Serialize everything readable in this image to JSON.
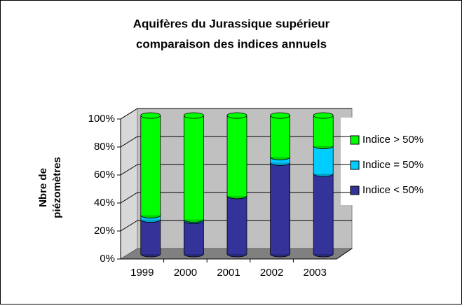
{
  "chart_data": {
    "type": "stacked-cylinder",
    "title": [
      "Aquifères du Jurassique supérieur",
      "comparaison des indices annuels"
    ],
    "ylabel": [
      "Nbre de",
      "piézomètres"
    ],
    "categories": [
      "1999",
      "2000",
      "2001",
      "2002",
      "2003"
    ],
    "series": [
      {
        "name": "Indice < 50%",
        "color": "#333399",
        "values": [
          25,
          24,
          42,
          66,
          58
        ]
      },
      {
        "name": "Indice = 50%",
        "color": "#00ccff",
        "values": [
          3,
          1,
          0,
          4,
          20
        ]
      },
      {
        "name": "Indice > 50%",
        "color": "#00ff00",
        "values": [
          72,
          75,
          58,
          30,
          22
        ]
      }
    ],
    "ylim": [
      0,
      100
    ],
    "yticks": [
      {
        "value": 0,
        "label": "0%"
      },
      {
        "value": 20,
        "label": "20%"
      },
      {
        "value": 40,
        "label": "40%"
      },
      {
        "value": 60,
        "label": "60%"
      },
      {
        "value": 80,
        "label": "80%"
      },
      {
        "value": 100,
        "label": "100%"
      }
    ],
    "grid": true
  }
}
